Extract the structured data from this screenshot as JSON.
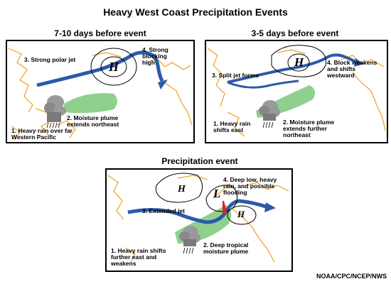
{
  "title": "Heavy West Coast Precipitation Events",
  "credit": "NOAA/CPC/NCEP/NWS",
  "panels": {
    "p1": {
      "heading": "7-10 days before event",
      "high_symbol": "H",
      "labels": {
        "jet": "3. Strong polar jet",
        "block": "4. Strong\nblocking\nhigh",
        "plume": "2. Moisture plume\nextends northeast",
        "rain": "1. Heavy rain over far\nWestern Pacific"
      }
    },
    "p2": {
      "heading": "3-5 days before event",
      "high_symbol": "H",
      "labels": {
        "jet": "3. Split jet forms",
        "block": "4. Block weakens\nand shifts\nwestward",
        "plume": "2. Moisture plume\nextends further\nnortheast",
        "rain": "1. Heavy rain\nshifts east"
      }
    },
    "p3": {
      "heading": "Precipitation event",
      "high_symbol_1": "H",
      "low_symbol": "L",
      "high_symbol_2": "H",
      "labels": {
        "jet": "3. Extended jet",
        "low": "4. Deep low, heavy\nrain, and possible\nflooding",
        "plume": "2. Deep tropical\nmoisture plume",
        "rain": "1. Heavy rain shifts\nfurther east and\nweakens"
      }
    }
  },
  "colors": {
    "jet": "#2b5aa8",
    "plume": "#8fd08f",
    "coast": "#f0a020",
    "flood": "#e02020",
    "cloud": "#9a9a9a"
  }
}
